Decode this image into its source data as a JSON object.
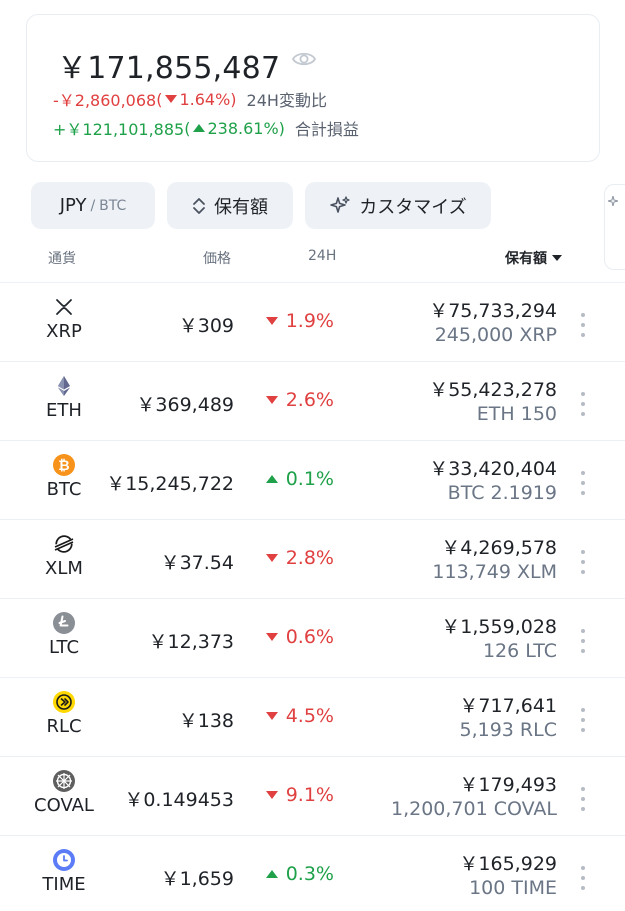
{
  "summary": {
    "total": "￥171,855,487",
    "change24h": {
      "amount": "-￥2,860,068",
      "open": " (",
      "pct": "1.64%",
      "close": ")",
      "label": "24H変動比"
    },
    "pnl": {
      "amount": "+￥121,101,885",
      "open": " (",
      "pct": "238.61%",
      "close": ")",
      "label": "合計損益"
    }
  },
  "controls": {
    "currency_main": "JPY",
    "currency_sep": "/",
    "currency_alt": "BTC",
    "sort_label": "保有額",
    "customize_label": "カスタマイズ"
  },
  "columns": {
    "currency": "通貨",
    "price": "価格",
    "change": "24H",
    "holdings": "保有額"
  },
  "colors": {
    "up": "#1fa14a",
    "down": "#e04040",
    "muted": "#6a7585"
  },
  "rows": [
    {
      "symbol": "XRP",
      "icon": "xrp-icon",
      "price": "￥309",
      "change": "1.9%",
      "dir": "down",
      "value": "￥75,733,294",
      "amount": "245,000 XRP"
    },
    {
      "symbol": "ETH",
      "icon": "eth-icon",
      "price": "￥369,489",
      "change": "2.6%",
      "dir": "down",
      "value": "￥55,423,278",
      "amount": "ETH 150"
    },
    {
      "symbol": "BTC",
      "icon": "btc-icon",
      "price": "￥15,245,722",
      "change": "0.1%",
      "dir": "up",
      "value": "￥33,420,404",
      "amount": "BTC 2.1919"
    },
    {
      "symbol": "XLM",
      "icon": "xlm-icon",
      "price": "￥37.54",
      "change": "2.8%",
      "dir": "down",
      "value": "￥4,269,578",
      "amount": "113,749 XLM"
    },
    {
      "symbol": "LTC",
      "icon": "ltc-icon",
      "price": "￥12,373",
      "change": "0.6%",
      "dir": "down",
      "value": "￥1,559,028",
      "amount": "126 LTC"
    },
    {
      "symbol": "RLC",
      "icon": "rlc-icon",
      "price": "￥138",
      "change": "4.5%",
      "dir": "down",
      "value": "￥717,641",
      "amount": "5,193 RLC"
    },
    {
      "symbol": "COVAL",
      "icon": "coval-icon",
      "price": "￥0.149453",
      "change": "9.1%",
      "dir": "down",
      "value": "￥179,493",
      "amount": "1,200,701 COVAL"
    },
    {
      "symbol": "TIME",
      "icon": "time-icon",
      "price": "￥1,659",
      "change": "0.3%",
      "dir": "up",
      "value": "￥165,929",
      "amount": "100 TIME"
    }
  ]
}
